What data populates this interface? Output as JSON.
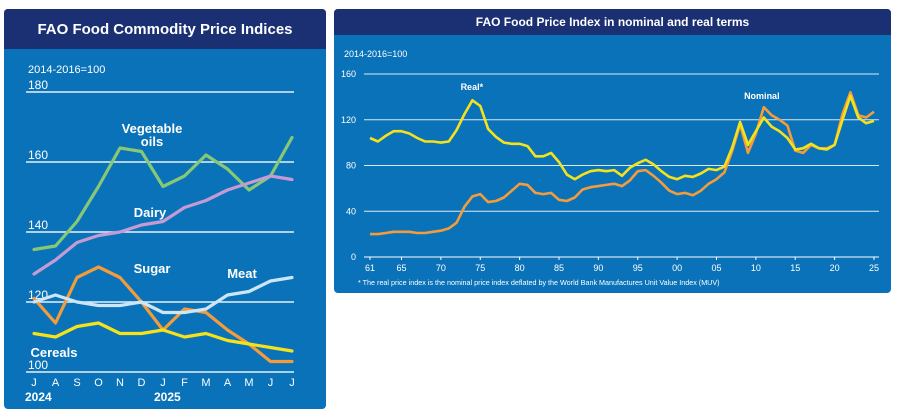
{
  "chart_data": [
    {
      "type": "line",
      "title": "FAO Food Commodity Price Indices",
      "ylabel": "2014-2016=100",
      "ylim": [
        100,
        180
      ],
      "yticks": [
        "180",
        "160",
        "140",
        "120",
        "100"
      ],
      "grid": true,
      "categories": [
        "J",
        "A",
        "S",
        "O",
        "N",
        "D",
        "J",
        "F",
        "M",
        "A",
        "M",
        "J",
        "J"
      ],
      "year_labels": [
        "2024",
        "2025"
      ],
      "series": [
        {
          "name": "Vegetable oils",
          "label": [
            "Vegetable",
            "oils"
          ],
          "color": "#86c876",
          "values": [
            135,
            136,
            143,
            153,
            164,
            163,
            153,
            156,
            162,
            158,
            152,
            156,
            167
          ]
        },
        {
          "name": "Dairy",
          "label": [
            "Dairy"
          ],
          "color": "#c49bd4",
          "values": [
            128,
            132,
            137,
            139,
            140,
            142,
            143,
            147,
            149,
            152,
            154,
            156,
            155
          ]
        },
        {
          "name": "Sugar",
          "label": [
            "Sugar"
          ],
          "color": "#f39c3c",
          "values": [
            121,
            114,
            127,
            130,
            127,
            120,
            112,
            118,
            117,
            112,
            108,
            103,
            103
          ]
        },
        {
          "name": "Meat",
          "label": [
            "Meat"
          ],
          "color": "#cde6f7",
          "values": [
            120,
            122,
            120,
            119,
            119,
            120,
            117,
            117,
            118,
            122,
            123,
            126,
            127
          ]
        },
        {
          "name": "Cereals",
          "label": [
            "Cereals"
          ],
          "color": "#f3e21c",
          "values": [
            111,
            110,
            113,
            114,
            111,
            111,
            112,
            110,
            111,
            109,
            108,
            107,
            106
          ]
        }
      ]
    },
    {
      "type": "line",
      "title": "FAO Food Price Index in nominal and real terms",
      "ylabel": "2014-2016=100",
      "ylim": [
        0,
        160
      ],
      "xlim": [
        1961,
        2025
      ],
      "yticks": [
        "160",
        "120",
        "80",
        "40",
        "0"
      ],
      "xticks": [
        {
          "year": 1961,
          "label": "61"
        },
        {
          "year": 1965,
          "label": "65"
        },
        {
          "year": 1970,
          "label": "70"
        },
        {
          "year": 1975,
          "label": "75"
        },
        {
          "year": 1980,
          "label": "80"
        },
        {
          "year": 1985,
          "label": "85"
        },
        {
          "year": 1990,
          "label": "90"
        },
        {
          "year": 1995,
          "label": "95"
        },
        {
          "year": 2000,
          "label": "00"
        },
        {
          "year": 2005,
          "label": "05"
        },
        {
          "year": 2010,
          "label": "10"
        },
        {
          "year": 2015,
          "label": "15"
        },
        {
          "year": 2020,
          "label": "20"
        },
        {
          "year": 2025,
          "label": "25"
        }
      ],
      "grid": true,
      "footnote": "* The real price index is the nominal price index deflated by the World Bank Manufactures Unit Value Index (MUV)",
      "series": [
        {
          "name": "Real*",
          "label": "Real*",
          "label_at": [
            1972.5,
            146
          ],
          "color": "#f3e21c",
          "points": [
            [
              1961,
              104
            ],
            [
              1962,
              101
            ],
            [
              1963,
              106
            ],
            [
              1964,
              110
            ],
            [
              1965,
              110
            ],
            [
              1966,
              108
            ],
            [
              1967,
              104
            ],
            [
              1968,
              101
            ],
            [
              1969,
              101
            ],
            [
              1970,
              100
            ],
            [
              1971,
              101
            ],
            [
              1972,
              111
            ],
            [
              1973,
              125
            ],
            [
              1974,
              137
            ],
            [
              1975,
              132
            ],
            [
              1976,
              112
            ],
            [
              1977,
              105
            ],
            [
              1978,
              100
            ],
            [
              1979,
              99
            ],
            [
              1980,
              99
            ],
            [
              1981,
              97
            ],
            [
              1982,
              88
            ],
            [
              1983,
              88
            ],
            [
              1984,
              91
            ],
            [
              1985,
              83
            ],
            [
              1986,
              72
            ],
            [
              1987,
              68
            ],
            [
              1988,
              72
            ],
            [
              1989,
              75
            ],
            [
              1990,
              76
            ],
            [
              1991,
              75
            ],
            [
              1992,
              76
            ],
            [
              1993,
              71
            ],
            [
              1994,
              78
            ],
            [
              1995,
              82
            ],
            [
              1996,
              85
            ],
            [
              1997,
              81
            ],
            [
              1998,
              75
            ],
            [
              1999,
              70
            ],
            [
              2000,
              68
            ],
            [
              2001,
              71
            ],
            [
              2002,
              70
            ],
            [
              2003,
              73
            ],
            [
              2004,
              77
            ],
            [
              2005,
              76
            ],
            [
              2006,
              79
            ],
            [
              2007,
              96
            ],
            [
              2008,
              118
            ],
            [
              2009,
              98
            ],
            [
              2010,
              110
            ],
            [
              2011,
              122
            ],
            [
              2012,
              114
            ],
            [
              2013,
              110
            ],
            [
              2014,
              104
            ],
            [
              2015,
              94
            ],
            [
              2016,
              95
            ],
            [
              2017,
              99
            ],
            [
              2018,
              95
            ],
            [
              2019,
              94
            ],
            [
              2020,
              98
            ],
            [
              2021,
              120
            ],
            [
              2022,
              141
            ],
            [
              2023,
              122
            ],
            [
              2024,
              117
            ],
            [
              2025,
              119
            ]
          ]
        },
        {
          "name": "Nominal",
          "label": "Nominal",
          "label_at": [
            2008.5,
            138
          ],
          "color": "#f39c3c",
          "points": [
            [
              1961,
              20
            ],
            [
              1962,
              20
            ],
            [
              1963,
              21
            ],
            [
              1964,
              22
            ],
            [
              1965,
              22
            ],
            [
              1966,
              22
            ],
            [
              1967,
              21
            ],
            [
              1968,
              21
            ],
            [
              1969,
              22
            ],
            [
              1970,
              23
            ],
            [
              1971,
              25
            ],
            [
              1972,
              30
            ],
            [
              1973,
              44
            ],
            [
              1974,
              53
            ],
            [
              1975,
              55
            ],
            [
              1976,
              48
            ],
            [
              1977,
              49
            ],
            [
              1978,
              52
            ],
            [
              1979,
              58
            ],
            [
              1980,
              64
            ],
            [
              1981,
              63
            ],
            [
              1982,
              56
            ],
            [
              1983,
              55
            ],
            [
              1984,
              56
            ],
            [
              1985,
              50
            ],
            [
              1986,
              49
            ],
            [
              1987,
              52
            ],
            [
              1988,
              59
            ],
            [
              1989,
              61
            ],
            [
              1990,
              62
            ],
            [
              1991,
              63
            ],
            [
              1992,
              64
            ],
            [
              1993,
              62
            ],
            [
              1994,
              67
            ],
            [
              1995,
              75
            ],
            [
              1996,
              76
            ],
            [
              1997,
              71
            ],
            [
              1998,
              65
            ],
            [
              1999,
              58
            ],
            [
              2000,
              55
            ],
            [
              2001,
              56
            ],
            [
              2002,
              54
            ],
            [
              2003,
              58
            ],
            [
              2004,
              64
            ],
            [
              2005,
              68
            ],
            [
              2006,
              74
            ],
            [
              2007,
              93
            ],
            [
              2008,
              116
            ],
            [
              2009,
              91
            ],
            [
              2010,
              108
            ],
            [
              2011,
              131
            ],
            [
              2012,
              124
            ],
            [
              2013,
              120
            ],
            [
              2014,
              115
            ],
            [
              2015,
              93
            ],
            [
              2016,
              91
            ],
            [
              2017,
              98
            ],
            [
              2018,
              95
            ],
            [
              2019,
              95
            ],
            [
              2020,
              98
            ],
            [
              2021,
              125
            ],
            [
              2022,
              144
            ],
            [
              2023,
              124
            ],
            [
              2024,
              122
            ],
            [
              2025,
              127
            ]
          ]
        }
      ]
    }
  ]
}
